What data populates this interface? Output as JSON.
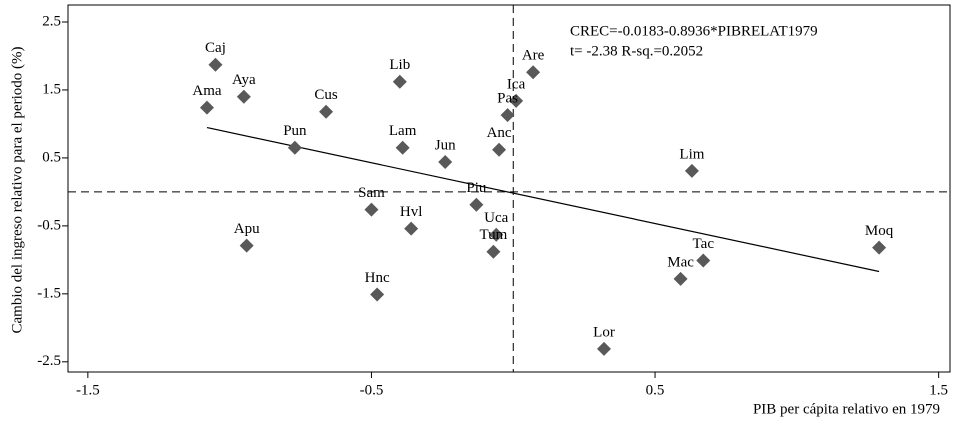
{
  "chart_data": {
    "type": "scatter",
    "x_label": "PIB per cápita relativo en 1979",
    "y_label": "Cambio del ingreso relativo para el periodo (%)",
    "annotations": [
      "CREC=-0.0183-0.8936*PIBRELAT1979",
      "t= -2.38   R-sq.=0.2052"
    ],
    "xlim": [
      -1.57,
      1.54
    ],
    "ylim": [
      -2.65,
      2.75
    ],
    "xticks": [
      -1.5,
      -0.5,
      0.5,
      1.5
    ],
    "yticks": [
      2.5,
      1.5,
      0.5,
      -0.5,
      -1.5,
      -2.5
    ],
    "reference_lines": {
      "x": 0,
      "y": 0
    },
    "series": [
      {
        "color": "#595959",
        "labels": [
          "Caj",
          "Aya",
          "Ama",
          "Cus",
          "Lib",
          "Are",
          "Ica",
          "Pas",
          "Pun",
          "Lam",
          "Jun",
          "Anc",
          "Lim",
          "Piu",
          "Sam",
          "Hvl",
          "Uca",
          "Tum",
          "Apu",
          "Hnc",
          "Tac",
          "Mac",
          "Moq",
          "Lor"
        ],
        "x": [
          -1.05,
          -0.95,
          -1.08,
          -0.66,
          -0.4,
          0.07,
          0.01,
          -0.02,
          -0.77,
          -0.39,
          -0.24,
          -0.05,
          0.63,
          -0.13,
          -0.5,
          -0.36,
          -0.06,
          -0.07,
          -0.94,
          -0.48,
          0.67,
          0.59,
          1.29,
          0.32
        ],
        "values": [
          1.87,
          1.4,
          1.24,
          1.18,
          1.62,
          1.76,
          1.34,
          1.13,
          0.65,
          0.65,
          0.44,
          0.62,
          0.31,
          -0.19,
          -0.26,
          -0.54,
          -0.63,
          -0.88,
          -0.79,
          -1.51,
          -1.01,
          -1.28,
          -0.82,
          -2.31
        ]
      }
    ],
    "fit_line": {
      "color": "#000000",
      "x": [
        -1.08,
        1.29
      ],
      "values": [
        0.947,
        -1.171
      ]
    }
  }
}
